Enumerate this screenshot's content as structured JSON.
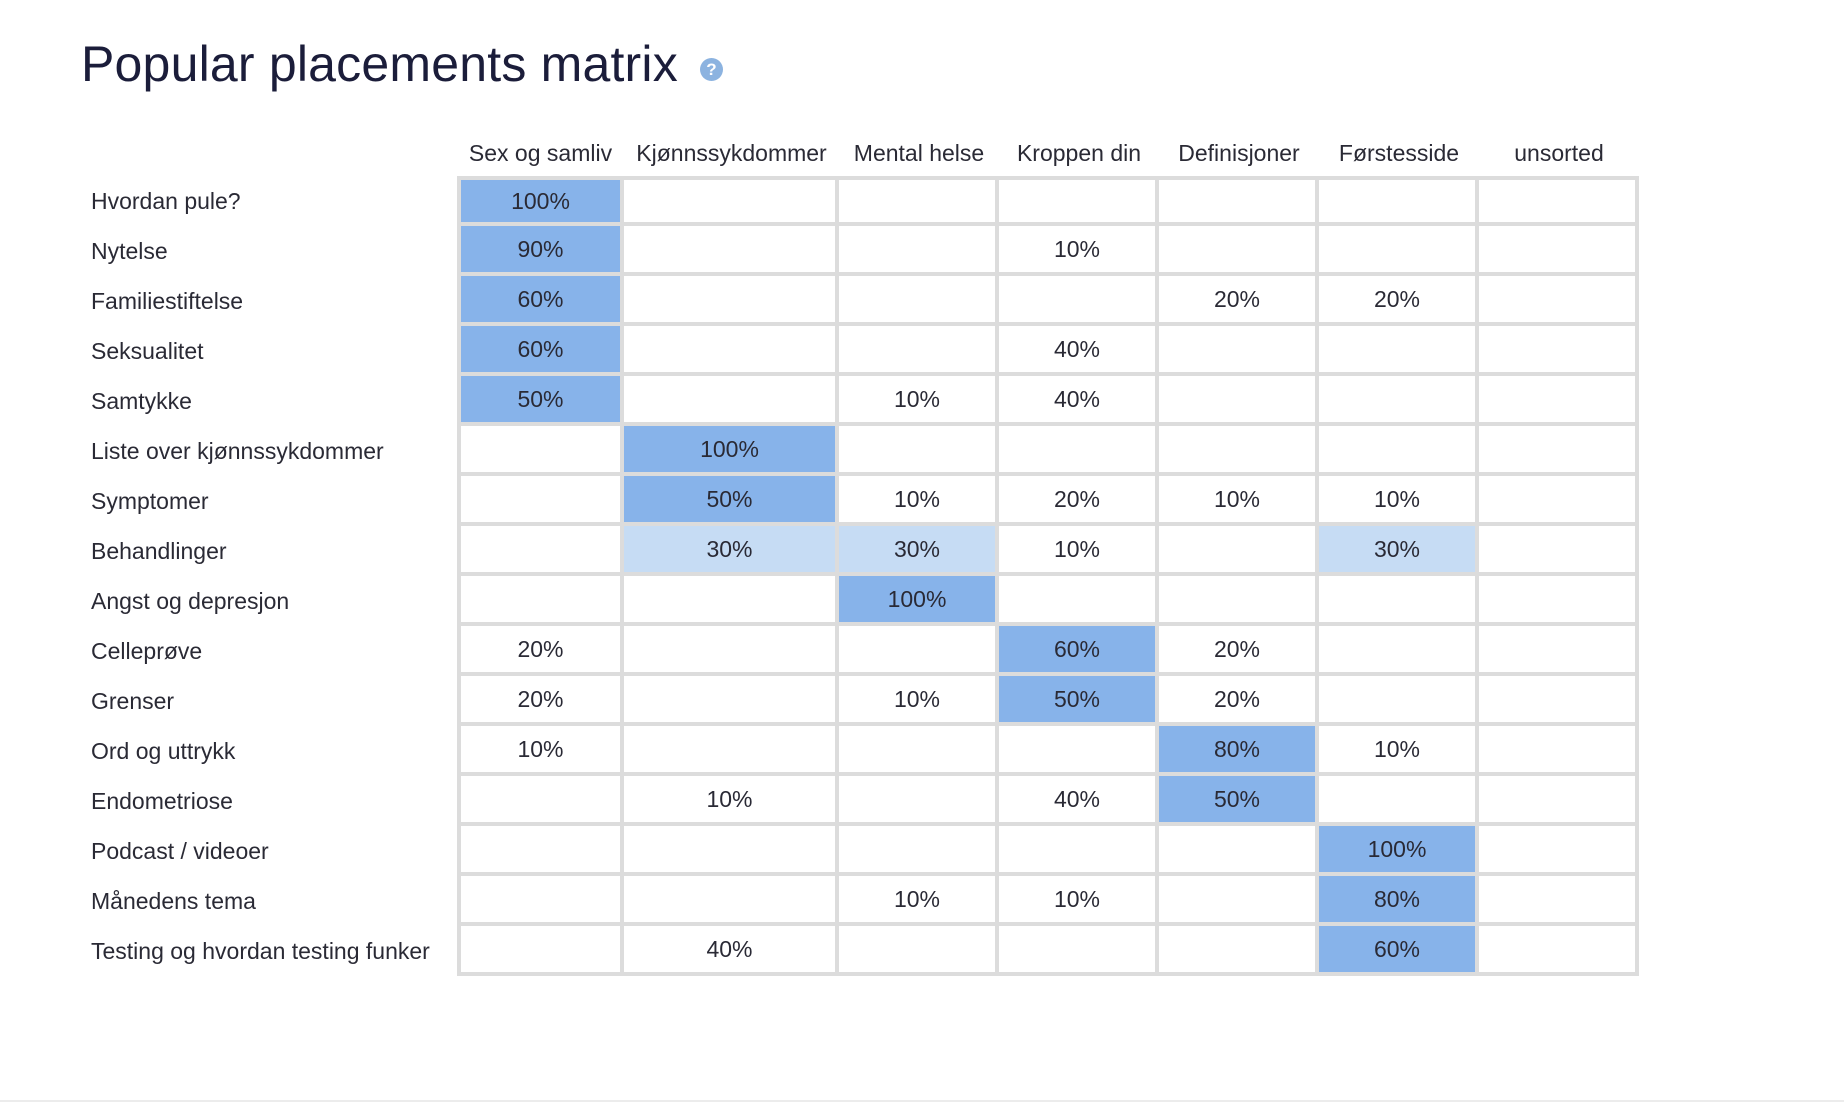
{
  "page": {
    "title": "Popular placements matrix",
    "help_icon": "question-circle-icon"
  },
  "colors": {
    "strong": "#87b3ea",
    "light": "#c6dcf4",
    "grid": "#dcdcdc",
    "title": "#1b1d3a"
  },
  "chart_data": {
    "type": "heatmap",
    "title": "Popular placements matrix",
    "columns": [
      "Sex og samliv",
      "Kjønnssykdommer",
      "Mental helse",
      "Kroppen din",
      "Definisjoner",
      "Førstesside",
      "unsorted"
    ],
    "rows": [
      {
        "label": "Hvordan pule?",
        "values": [
          100,
          null,
          null,
          null,
          null,
          null,
          null
        ]
      },
      {
        "label": "Nytelse",
        "values": [
          90,
          null,
          null,
          10,
          null,
          null,
          null
        ]
      },
      {
        "label": "Familiestiftelse",
        "values": [
          60,
          null,
          null,
          null,
          20,
          20,
          null
        ]
      },
      {
        "label": "Seksualitet",
        "values": [
          60,
          null,
          null,
          40,
          null,
          null,
          null
        ]
      },
      {
        "label": "Samtykke",
        "values": [
          50,
          null,
          10,
          40,
          null,
          null,
          null
        ]
      },
      {
        "label": "Liste over kjønnssykdommer",
        "values": [
          null,
          100,
          null,
          null,
          null,
          null,
          null
        ]
      },
      {
        "label": "Symptomer",
        "values": [
          null,
          50,
          10,
          20,
          10,
          10,
          null
        ]
      },
      {
        "label": "Behandlinger",
        "values": [
          null,
          30,
          30,
          10,
          null,
          30,
          null
        ]
      },
      {
        "label": "Angst og depresjon",
        "values": [
          null,
          null,
          100,
          null,
          null,
          null,
          null
        ]
      },
      {
        "label": "Celleprøve",
        "values": [
          20,
          null,
          null,
          60,
          20,
          null,
          null
        ]
      },
      {
        "label": "Grenser",
        "values": [
          20,
          null,
          10,
          50,
          20,
          null,
          null
        ]
      },
      {
        "label": "Ord og uttrykk",
        "values": [
          10,
          null,
          null,
          null,
          80,
          10,
          null
        ]
      },
      {
        "label": "Endometriose",
        "values": [
          null,
          10,
          null,
          40,
          50,
          null,
          null
        ]
      },
      {
        "label": "Podcast / videoer",
        "values": [
          null,
          null,
          null,
          null,
          null,
          100,
          null
        ]
      },
      {
        "label": "Månedens tema",
        "values": [
          null,
          null,
          10,
          10,
          null,
          80,
          null
        ]
      },
      {
        "label": "Testing og hvordan testing funker",
        "values": [
          null,
          40,
          null,
          null,
          null,
          60,
          null
        ]
      }
    ],
    "highlight": {
      "strong": [
        [
          0,
          0
        ],
        [
          1,
          0
        ],
        [
          2,
          0
        ],
        [
          3,
          0
        ],
        [
          4,
          0
        ],
        [
          5,
          1
        ],
        [
          6,
          1
        ],
        [
          8,
          2
        ],
        [
          9,
          3
        ],
        [
          10,
          3
        ],
        [
          11,
          4
        ],
        [
          12,
          4
        ],
        [
          13,
          5
        ],
        [
          14,
          5
        ],
        [
          15,
          5
        ]
      ],
      "light": [
        [
          7,
          1
        ],
        [
          7,
          2
        ],
        [
          7,
          5
        ]
      ]
    }
  }
}
